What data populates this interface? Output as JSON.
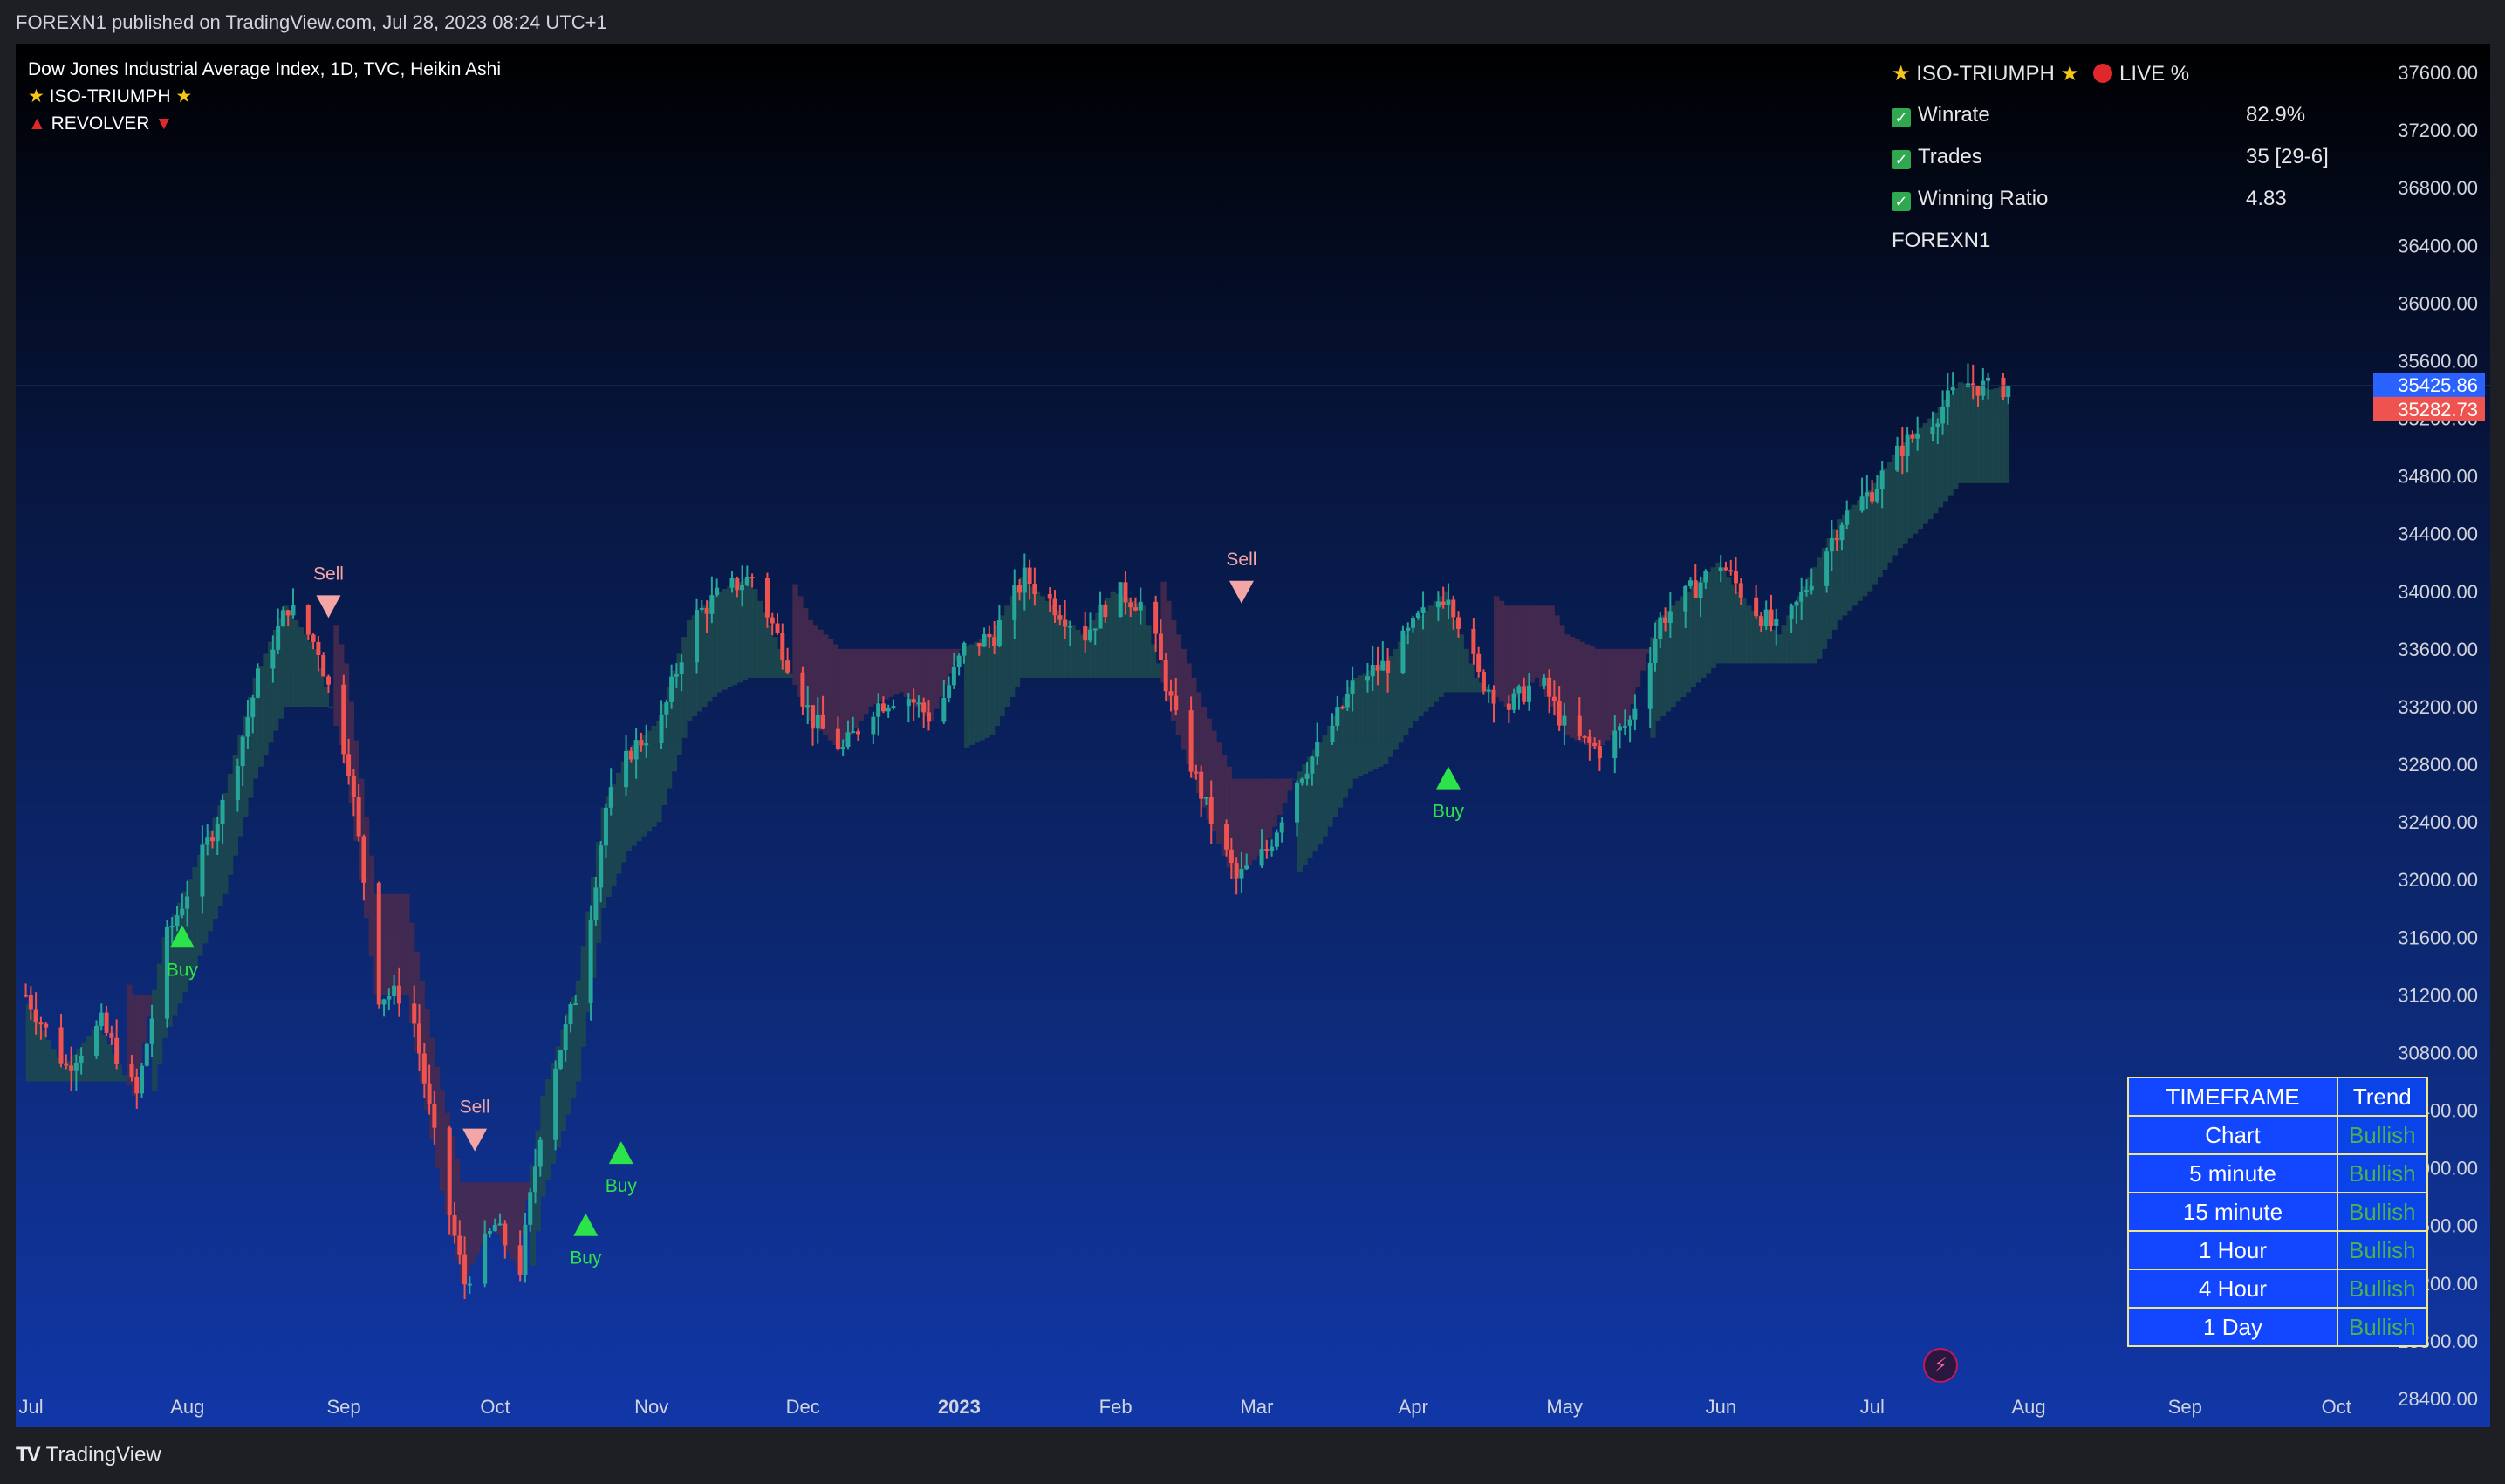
{
  "header": {
    "published": "FOREXN1 published on TradingView.com, Jul 28, 2023 08:24 UTC+1"
  },
  "legend": {
    "title": "Dow Jones Industrial Average Index, 1D, TVC, Heikin Ashi",
    "line2": "ISO-TRIUMPH",
    "line3": "REVOLVER"
  },
  "stats": {
    "title": "ISO-TRIUMPH",
    "live": "LIVE %",
    "rows": [
      {
        "label": "Winrate",
        "value": "82.9%"
      },
      {
        "label": "Trades",
        "value": "35 [29-6]"
      },
      {
        "label": "Winning Ratio",
        "value": "4.83"
      }
    ],
    "author": "FOREXN1"
  },
  "trend_table": {
    "header": [
      "TIMEFRAME",
      "Trend"
    ],
    "rows": [
      {
        "tf": "Chart",
        "trend": "Bullish"
      },
      {
        "tf": "5 minute",
        "trend": "Bullish"
      },
      {
        "tf": "15 minute",
        "trend": "Bullish"
      },
      {
        "tf": "1 Hour",
        "trend": "Bullish"
      },
      {
        "tf": "4 Hour",
        "trend": "Bullish"
      },
      {
        "tf": "1 Day",
        "trend": "Bullish"
      }
    ]
  },
  "footer": {
    "brand": "TradingView"
  },
  "colors": {
    "bull": "#26a69a",
    "bear": "#ef5350",
    "buy": "#2de34a",
    "sell": "#f4a6a6",
    "band_bear": "#4a2a4e",
    "band_bull": "#1d4a4e",
    "price_tag": "#2962ff",
    "price_tag2": "#ef5350"
  },
  "chart_data": {
    "type": "candlestick",
    "y_ticks": [
      37600,
      37200,
      36800,
      36400,
      36000,
      35600,
      35200,
      34800,
      34400,
      34000,
      33600,
      33200,
      32800,
      32400,
      32000,
      31600,
      31200,
      30800,
      30400,
      30000,
      29600,
      29200,
      28800,
      28400
    ],
    "y_range": [
      28200,
      37800
    ],
    "x_labels": [
      "Jul",
      "Aug",
      "Sep",
      "Oct",
      "Nov",
      "Dec",
      "2023",
      "Feb",
      "Mar",
      "Apr",
      "May",
      "Jun",
      "Jul",
      "Aug",
      "Sep",
      "Oct"
    ],
    "x_range_days": [
      -2,
      465
    ],
    "x_label_days": [
      0,
      31,
      62,
      92,
      123,
      153,
      184,
      215,
      243,
      274,
      304,
      335,
      365,
      396,
      427,
      457
    ],
    "last_price": "35425.86",
    "last_price_2": "35282.73",
    "close_series": {
      "days": [
        0,
        8,
        15,
        22,
        28,
        33,
        40,
        46,
        52,
        58,
        64,
        70,
        76,
        82,
        87,
        93,
        98,
        103,
        110,
        115,
        120,
        126,
        132,
        138,
        144,
        150,
        156,
        162,
        168,
        174,
        180,
        186,
        192,
        198,
        204,
        210,
        216,
        222,
        228,
        234,
        240,
        246,
        252,
        258,
        264,
        270,
        276,
        282,
        288,
        294,
        300,
        306,
        312,
        318,
        324,
        330,
        336,
        342,
        348,
        354,
        360,
        366,
        372,
        378,
        384,
        390,
        393
      ],
      "values": [
        31200,
        30700,
        31000,
        30500,
        31600,
        32000,
        32600,
        33400,
        33900,
        33600,
        32800,
        31200,
        31200,
        30000,
        29200,
        29600,
        29300,
        30500,
        31300,
        32500,
        32900,
        33100,
        33800,
        34000,
        34100,
        33600,
        33100,
        32900,
        33200,
        33300,
        33100,
        33600,
        33700,
        34100,
        33900,
        33700,
        34000,
        33900,
        33100,
        32500,
        32000,
        32200,
        32700,
        33000,
        33400,
        33500,
        33800,
        34000,
        33400,
        33200,
        33400,
        33000,
        32900,
        33100,
        33800,
        34000,
        34200,
        33900,
        33700,
        34100,
        34500,
        34700,
        35000,
        35200,
        35450,
        35400,
        35425
      ]
    },
    "signals": [
      {
        "type": "Buy",
        "day": 31,
        "price": 31600
      },
      {
        "type": "Sell",
        "day": 60,
        "price": 33900
      },
      {
        "type": "Sell",
        "day": 89,
        "price": 30200
      },
      {
        "type": "Buy",
        "day": 111,
        "price": 29600
      },
      {
        "type": "Buy",
        "day": 118,
        "price": 30100
      },
      {
        "type": "Sell",
        "day": 241,
        "price": 34000
      },
      {
        "type": "Buy",
        "day": 282,
        "price": 32700
      }
    ],
    "grid": false
  }
}
